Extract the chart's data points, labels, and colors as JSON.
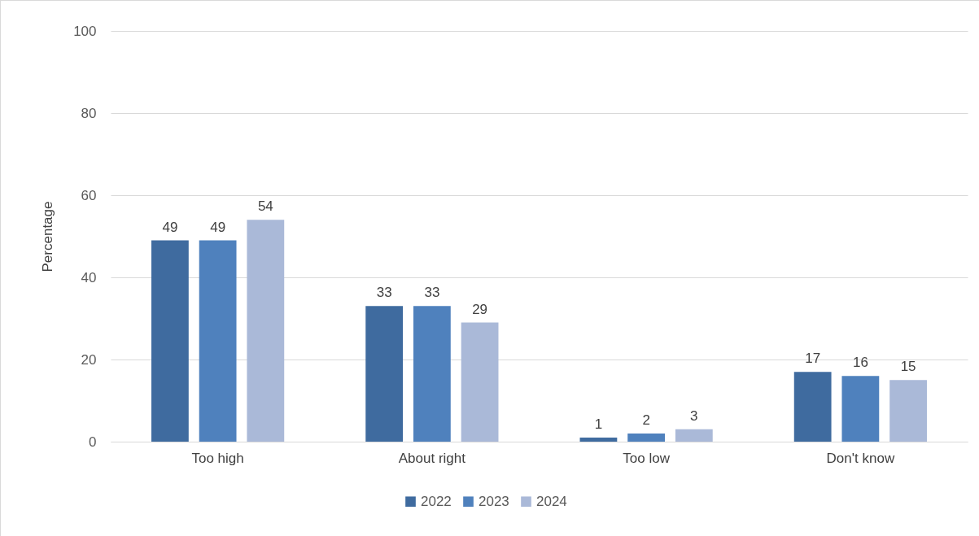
{
  "chart_data": {
    "type": "bar",
    "ylabel": "Percentage",
    "categories": [
      "Too high",
      "About right",
      "Too low",
      "Don't know"
    ],
    "series": [
      {
        "name": "2022",
        "color": "#3f6b9f",
        "values": [
          49,
          33,
          1,
          17
        ]
      },
      {
        "name": "2023",
        "color": "#4f81bd",
        "values": [
          49,
          33,
          2,
          16
        ]
      },
      {
        "name": "2024",
        "color": "#aab9d8",
        "values": [
          54,
          29,
          3,
          15
        ]
      }
    ],
    "ylim": [
      0,
      100
    ],
    "yticks": [
      0,
      20,
      40,
      60,
      80,
      100
    ],
    "grid": "y",
    "legend": "bottom",
    "data_labels": true
  }
}
